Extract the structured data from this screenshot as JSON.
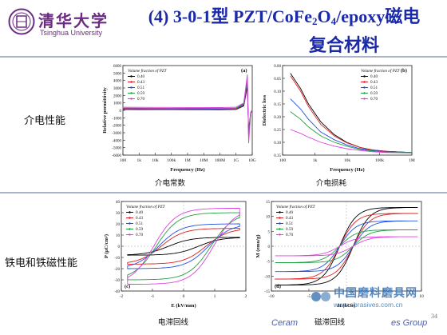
{
  "logo": {
    "cn": "清华大学",
    "en": "Tsinghua University"
  },
  "title": {
    "line1_prefix": "(4) 3-0-1型 PZT/CoFe",
    "sub1": "2",
    "mid": "O",
    "sub2": "4",
    "line1_suffix": "/epoxy磁电",
    "line2": "复合材料"
  },
  "sections": {
    "dielectric": "介电性能",
    "ferro": "铁电和铁磁性能"
  },
  "captions": {
    "permittivity": "介电常数",
    "loss": "介电损耗",
    "hysteresis": "电滞回线",
    "magnetic": "磁滞回线"
  },
  "footer": {
    "brand_left": "Ceram",
    "brand_right": "es Group",
    "page": "34"
  },
  "watermark": {
    "cn": "中国磨料磨具网",
    "url": "www.abrasives.com.cn"
  },
  "colors": {
    "title": "#1a2aa8",
    "logo": "#6b2b82",
    "accent": "#4a5fb0"
  },
  "chart_data": [
    {
      "type": "line",
      "panel": "(a)",
      "xlabel": "Frequency (Hz)",
      "ylabel": "Relative permittivity",
      "x_scale": "log",
      "xlim": [
        100,
        10000000000
      ],
      "ylim": [
        -6000,
        6000
      ],
      "x_tick_labels": [
        "100",
        "1k",
        "10k",
        "100k",
        "1M",
        "10M",
        "100M",
        "1G",
        "10G"
      ],
      "y_tick_labels": [
        "6000",
        "5000",
        "4000",
        "3000",
        "2000",
        "1000",
        "0",
        "-1000",
        "-2000",
        "-3000",
        "-4000",
        "-5000",
        "-6000"
      ],
      "legend_title": "Volume fraction of PZT",
      "legend_placement": "top-left",
      "series": [
        {
          "name": "0.40",
          "color": "#000000",
          "x": [
            100,
            1000,
            10000,
            100000,
            1000000,
            10000000,
            100000000,
            1000000000,
            3000000000,
            5000000000,
            6000000000,
            8000000000,
            10000000000
          ],
          "y": [
            120,
            110,
            100,
            95,
            90,
            85,
            80,
            120,
            600,
            3200,
            -2800,
            -300,
            60
          ]
        },
        {
          "name": "0.43",
          "color": "#e02020",
          "x": [
            100,
            1000,
            10000,
            100000,
            1000000,
            10000000,
            100000000,
            1000000000,
            3000000000,
            5000000000,
            6000000000,
            8000000000,
            10000000000
          ],
          "y": [
            160,
            150,
            140,
            135,
            130,
            125,
            120,
            160,
            700,
            3600,
            -3200,
            -350,
            80
          ]
        },
        {
          "name": "0.51",
          "color": "#2050e0",
          "x": [
            100,
            1000,
            10000,
            100000,
            1000000,
            10000000,
            100000000,
            1000000000,
            3000000000,
            5000000000,
            6000000000,
            8000000000,
            10000000000
          ],
          "y": [
            220,
            210,
            200,
            195,
            190,
            185,
            180,
            220,
            800,
            4000,
            -3600,
            -400,
            100
          ]
        },
        {
          "name": "0.59",
          "color": "#20a040",
          "x": [
            100,
            1000,
            10000,
            100000,
            1000000,
            10000000,
            100000000,
            1000000000,
            3000000000,
            5000000000,
            6000000000,
            8000000000,
            10000000000
          ],
          "y": [
            300,
            290,
            280,
            275,
            270,
            265,
            260,
            300,
            900,
            4400,
            -4000,
            -450,
            120
          ]
        },
        {
          "name": "0.70",
          "color": "#e040e0",
          "x": [
            100,
            1000,
            10000,
            100000,
            1000000,
            10000000,
            100000000,
            1000000000,
            3000000000,
            5000000000,
            6000000000,
            8000000000,
            10000000000
          ],
          "y": [
            420,
            410,
            400,
            395,
            390,
            385,
            380,
            420,
            1000,
            4800,
            -4400,
            -500,
            140
          ]
        }
      ]
    },
    {
      "type": "line",
      "panel": "(b)",
      "xlabel": "Frequency (Hz)",
      "ylabel": "Dielectric loss",
      "x_scale": "log",
      "xlim": [
        10,
        1000000
      ],
      "ylim": [
        0,
        0.35
      ],
      "x_tick_labels": [
        "100",
        "1k",
        "10k",
        "100k",
        "1M"
      ],
      "y_tick_labels": [
        "0.00",
        "0.05",
        "0.10",
        "0.15",
        "0.20",
        "0.25",
        "0.30",
        "0.35"
      ],
      "legend_title": "Volume fraction of PZT",
      "legend_placement": "top-right",
      "series": [
        {
          "name": "0.40",
          "color": "#000000",
          "x": [
            20,
            50,
            100,
            300,
            1000,
            3000,
            10000,
            30000,
            100000,
            1000000
          ],
          "y": [
            0.32,
            0.26,
            0.2,
            0.13,
            0.08,
            0.05,
            0.03,
            0.02,
            0.015,
            0.01
          ]
        },
        {
          "name": "0.43",
          "color": "#e02020",
          "x": [
            20,
            50,
            100,
            300,
            1000,
            3000,
            10000,
            30000,
            100000,
            1000000
          ],
          "y": [
            0.31,
            0.25,
            0.19,
            0.12,
            0.075,
            0.048,
            0.03,
            0.02,
            0.015,
            0.01
          ]
        },
        {
          "name": "0.51",
          "color": "#2050e0",
          "x": [
            20,
            50,
            100,
            300,
            1000,
            3000,
            10000,
            30000,
            100000,
            1000000
          ],
          "y": [
            0.22,
            0.18,
            0.14,
            0.09,
            0.06,
            0.04,
            0.025,
            0.018,
            0.013,
            0.01
          ]
        },
        {
          "name": "0.59",
          "color": "#20a040",
          "x": [
            20,
            50,
            100,
            300,
            1000,
            3000,
            10000,
            30000,
            100000,
            1000000
          ],
          "y": [
            0.17,
            0.14,
            0.11,
            0.075,
            0.05,
            0.035,
            0.022,
            0.016,
            0.012,
            0.01
          ]
        },
        {
          "name": "0.70",
          "color": "#e040e0",
          "x": [
            20,
            50,
            100,
            300,
            1000,
            3000,
            10000,
            30000,
            100000,
            1000000
          ],
          "y": [
            0.1,
            0.085,
            0.07,
            0.05,
            0.035,
            0.025,
            0.018,
            0.013,
            0.01,
            0.008
          ]
        }
      ]
    },
    {
      "type": "line",
      "panel": "(c)",
      "xlabel": "E (kV/mm)",
      "ylabel": "P (μC/cm²)",
      "xlim": [
        -2.5,
        2.5
      ],
      "ylim": [
        -40,
        40
      ],
      "x_tick_labels": [
        "-2",
        "-1",
        "0",
        "1",
        "2"
      ],
      "y_tick_labels": [
        "40",
        "30",
        "20",
        "10",
        "0",
        "-10",
        "-20",
        "-30",
        "-40"
      ],
      "legend_title": "Volume fraction of PZT",
      "legend_placement": "top-left",
      "series": [
        {
          "name": "0.40",
          "color": "#000000",
          "Ec": 0.6,
          "Pr": 4,
          "Pmax": 8
        },
        {
          "name": "0.43",
          "color": "#e02020",
          "Ec": 0.9,
          "Pr": 10,
          "Pmax": 16
        },
        {
          "name": "0.51",
          "color": "#2050e0",
          "Ec": 1.0,
          "Pr": 14,
          "Pmax": 20
        },
        {
          "name": "0.59",
          "color": "#20a040",
          "Ec": 1.1,
          "Pr": 22,
          "Pmax": 30
        },
        {
          "name": "0.70",
          "color": "#e040e0",
          "Ec": 1.2,
          "Pr": 26,
          "Pmax": 34
        }
      ]
    },
    {
      "type": "line",
      "panel": "(d)",
      "xlabel": "H (kOe)",
      "ylabel": "M (emu/g)",
      "xlim": [
        -10,
        10
      ],
      "ylim": [
        -15,
        15
      ],
      "x_tick_labels": [
        "-10",
        "-5",
        "0",
        "5",
        "10"
      ],
      "y_tick_labels": [
        "15",
        "10",
        "5",
        "0",
        "-5",
        "-10",
        "-15"
      ],
      "legend_title": "Volume fraction of PZT",
      "legend_placement": "top-left",
      "series": [
        {
          "name": "0.40",
          "color": "#000000",
          "Hc": 0.9,
          "Mr": 6,
          "Ms": 13
        },
        {
          "name": "0.43",
          "color": "#e02020",
          "Hc": 0.9,
          "Mr": 5,
          "Ms": 11
        },
        {
          "name": "0.51",
          "color": "#2050e0",
          "Hc": 0.9,
          "Mr": 4,
          "Ms": 8.5
        },
        {
          "name": "0.59",
          "color": "#20a040",
          "Hc": 0.9,
          "Mr": 2.5,
          "Ms": 5.5
        },
        {
          "name": "0.70",
          "color": "#e040e0",
          "Hc": 0.9,
          "Mr": 1.5,
          "Ms": 3.2
        }
      ]
    }
  ]
}
